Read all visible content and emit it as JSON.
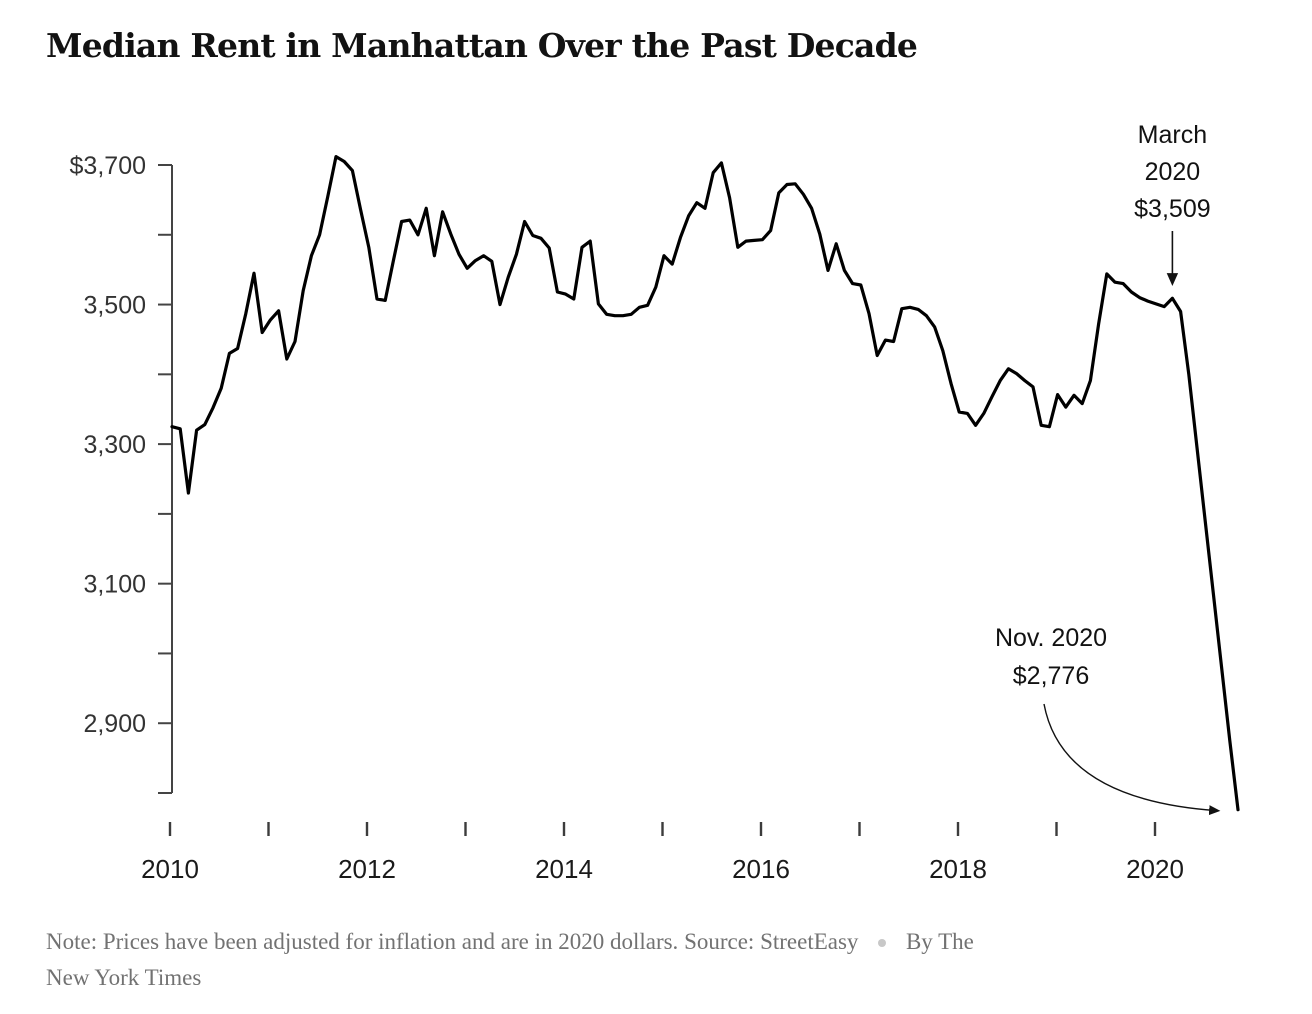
{
  "page": {
    "background": "#ffffff"
  },
  "chart_data": {
    "type": "line",
    "title": "Median Rent in Manhattan Over the Past Decade",
    "x_start": "2010-01",
    "x_end": "2020-11",
    "frequency": "monthly",
    "grid": false,
    "legend": "none",
    "line_color": "#000000",
    "axis_color": "#444444",
    "ylim": [
      2800,
      3700
    ],
    "y_tick_step": 100,
    "y_label_values": [
      3700,
      3500,
      3300,
      3100,
      2900
    ],
    "y_label_texts": [
      "$3,700",
      "3,500",
      "3,300",
      "3,100",
      "2,900"
    ],
    "x_tick_years": [
      2010,
      2011,
      2012,
      2013,
      2014,
      2015,
      2016,
      2017,
      2018,
      2019,
      2020
    ],
    "x_label_years": [
      "2010",
      "2012",
      "2014",
      "2016",
      "2018",
      "2020"
    ],
    "series": [
      {
        "name": "Median rent in Manhattan (2020 dollars)",
        "values": [
          3325,
          3322,
          3230,
          3320,
          3328,
          3352,
          3380,
          3430,
          3437,
          3487,
          3545,
          3460,
          3478,
          3491,
          3422,
          3447,
          3520,
          3570,
          3600,
          3655,
          3712,
          3705,
          3692,
          3636,
          3582,
          3508,
          3506,
          3563,
          3619,
          3621,
          3600,
          3638,
          3570,
          3633,
          3601,
          3572,
          3552,
          3563,
          3570,
          3562,
          3500,
          3539,
          3572,
          3619,
          3599,
          3595,
          3581,
          3518,
          3515,
          3508,
          3582,
          3591,
          3501,
          3486,
          3484,
          3484,
          3486,
          3496,
          3499,
          3525,
          3570,
          3558,
          3596,
          3627,
          3646,
          3638,
          3689,
          3703,
          3653,
          3582,
          3591,
          3592,
          3593,
          3606,
          3660,
          3672,
          3673,
          3658,
          3638,
          3601,
          3549,
          3587,
          3549,
          3530,
          3528,
          3487,
          3427,
          3449,
          3447,
          3494,
          3496,
          3493,
          3484,
          3468,
          3434,
          3387,
          3346,
          3344,
          3327,
          3344,
          3368,
          3391,
          3408,
          3401,
          3391,
          3382,
          3327,
          3325,
          3371,
          3353,
          3370,
          3358,
          3391,
          3472,
          3544,
          3532,
          3530,
          3518,
          3510,
          3505,
          3501,
          3497,
          3509,
          3490,
          3400,
          3295,
          3190,
          3085,
          2980,
          2875,
          2776
        ]
      }
    ],
    "annotations": [
      {
        "id": "march-2020",
        "label_lines": [
          "March",
          "2020",
          "$3,509"
        ],
        "point_index": 122,
        "value": 3509,
        "arrow": "straight-down"
      },
      {
        "id": "nov-2020",
        "label_lines": [
          "Nov. 2020",
          "$2,776"
        ],
        "point_index": 130,
        "value": 2776,
        "arrow": "curved-right"
      }
    ]
  },
  "header": {
    "title": "Median Rent in Manhattan Over the Past Decade"
  },
  "footer": {
    "note": "Note: Prices have been adjusted for inflation and are in 2020 dollars.",
    "source": "Source: StreetEasy",
    "separator_icon": "dot",
    "byline_line1": "By The",
    "byline_line2": "New York Times"
  }
}
